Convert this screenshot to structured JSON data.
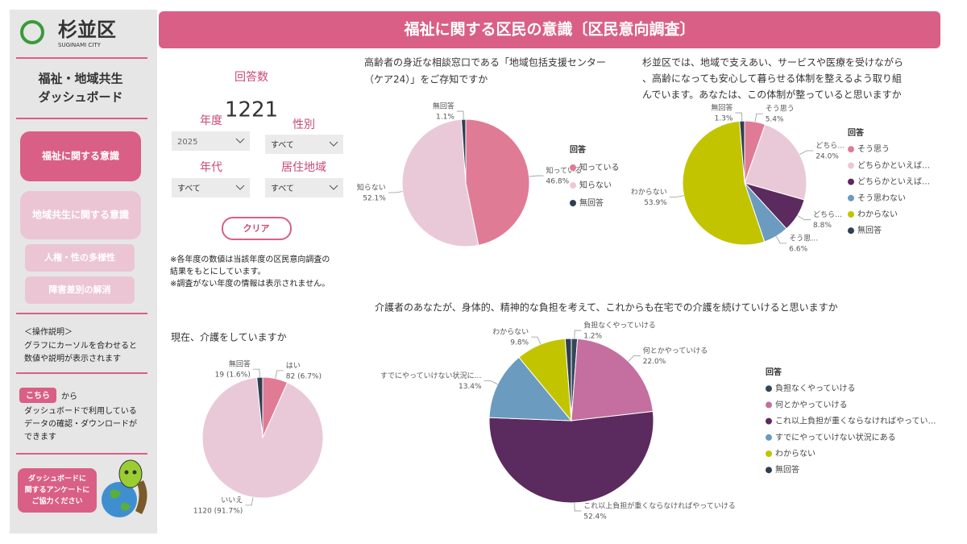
{
  "logo": {
    "name": "杉並区",
    "subtitle": "SUGINAMI CITY"
  },
  "header": {
    "title": "福祉に関する区民の意識〔区民意向調査〕"
  },
  "sidebar": {
    "title": [
      "福祉・地域共生",
      "ダッシュボード"
    ],
    "nav": [
      "福祉に関する意識",
      "地域共生に関する意識",
      "人権・性の多様性",
      "障害差別の解消"
    ],
    "help_title": "＜操作説明＞",
    "help": [
      "グラフにカーソルを合わせると",
      "数値や説明が表示されます"
    ],
    "link_button": "こちら",
    "link_after": "から",
    "link_text": [
      "ダッシュボードで利用している",
      "データの確認・ダウンロードが",
      "できます"
    ],
    "survey_button": [
      "ダッシュボードに",
      "関するアンケートに",
      "ご協力ください"
    ]
  },
  "filters": {
    "count_label": "回答数",
    "count": 1221,
    "year_label": "年度",
    "year": "2025",
    "gender_label": "性別",
    "gender": "すべて",
    "age_label": "年代",
    "age": "すべて",
    "area_label": "居住地域",
    "area": "すべて",
    "clear": "クリア",
    "notes": [
      "※各年度の数値は当該年度の区民意向調査の",
      "結果をもとにしています。",
      "※調査がない年度の情報は表示されません。"
    ]
  },
  "chart_data": [
    {
      "type": "pie",
      "title": [
        "高齢者の身近な相談窓口である「地域包括支援センター",
        "（ケア24）」をご存知ですか"
      ],
      "categories": [
        "知っている",
        "知らない",
        "無回答"
      ],
      "values": [
        46.8,
        52.1,
        1.1
      ],
      "value_labels": [
        "46.8%",
        "52.1%",
        "1.1%"
      ],
      "colors": [
        "#e07b96",
        "#e9c9d8",
        "#2f3f4f"
      ],
      "legend_title": "回答"
    },
    {
      "type": "pie",
      "title": [
        "杉並区では、地域で支えあい、サービスや医療を受けながら",
        "、高齢になっても安心して暮らせる体制を整えるよう取り組",
        "んでいます。あなたは、この体制が整っていると思いますか"
      ],
      "categories": [
        "そう思う",
        "どちらかといえば…",
        "どちらかといえば…",
        "そう思わない",
        "わからない",
        "無回答"
      ],
      "slice_labels": [
        "そう思う",
        "どちら…",
        "どちら…",
        "そう思…",
        "わからない",
        "無回答"
      ],
      "values": [
        5.4,
        24.0,
        8.8,
        6.6,
        53.9,
        1.3
      ],
      "value_labels": [
        "5.4%",
        "24.0%",
        "8.8%",
        "6.6%",
        "53.9%",
        "1.3%"
      ],
      "colors": [
        "#e07b96",
        "#e9c9d8",
        "#5b2a5e",
        "#6b9bbf",
        "#c2c400",
        "#2f3f4f"
      ],
      "legend_title": "回答"
    },
    {
      "type": "pie",
      "title": [
        "現在、介護をしていますか"
      ],
      "categories": [
        "はい",
        "いいえ",
        "無回答"
      ],
      "values": [
        82,
        1120,
        19
      ],
      "value_labels": [
        "82 (6.7%)",
        "1120 (91.7%)",
        "19 (1.6%)"
      ],
      "colors": [
        "#e07b96",
        "#e9c9d8",
        "#2f3f4f"
      ]
    },
    {
      "type": "pie",
      "title": [
        "介護者のあなたが、身体的、精神的な負担を考えて、これからも在宅での介護を続けていけると思いますか"
      ],
      "categories": [
        "負担なくやっていける",
        "何とかやっていける",
        "これ以上負担が重くならなければやっていける",
        "すでにやっていけない状況にある",
        "わからない",
        "無回答"
      ],
      "legend_labels": [
        "負担なくやっていける",
        "何とかやっていける",
        "これ以上負担が重くならなければやってい…",
        "すでにやっていけない状況にある",
        "わからない",
        "無回答"
      ],
      "slice_labels": [
        "負担なくやっていける",
        "何とかやっていける",
        "これ以上負担が重くならなければやっていける",
        "すでにやっていけない状況に…",
        "わからない",
        null
      ],
      "values": [
        1.2,
        22.0,
        52.4,
        13.4,
        9.8,
        1.2
      ],
      "value_labels": [
        "1.2%",
        "22.0%",
        "52.4%",
        "13.4%",
        "9.8%",
        null
      ],
      "colors": [
        "#34465a",
        "#c46fa0",
        "#5b2a5e",
        "#6b9bbf",
        "#c2c400",
        "#2f3f4f"
      ],
      "legend_title": "回答"
    }
  ]
}
